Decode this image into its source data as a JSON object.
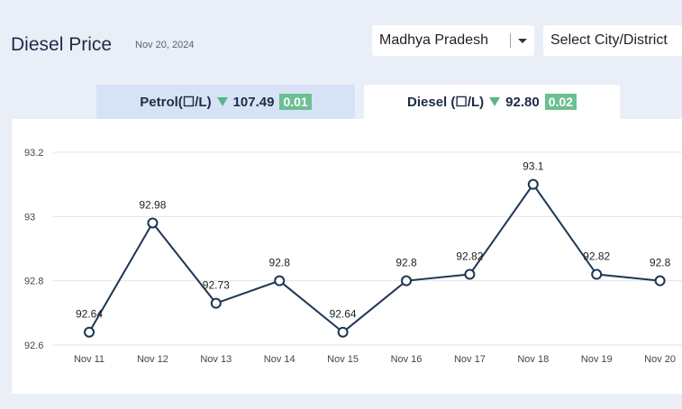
{
  "header": {
    "title": "Diesel Price",
    "date": "Nov 20, 2024",
    "state_select": "Madhya Pradesh",
    "city_select": "Select City/District"
  },
  "tabs": [
    {
      "label": "Petrol(☐/L)",
      "value": "107.49",
      "change": "0.01",
      "trend": "down"
    },
    {
      "label": "Diesel (☐/L)",
      "value": "92.80",
      "change": "0.02",
      "trend": "down"
    }
  ],
  "colors": {
    "line": "#1e3553",
    "trend_down": "#5bb58a",
    "badge": "#6cbf93"
  },
  "chart_data": {
    "type": "line",
    "categories": [
      "Nov 11",
      "Nov 12",
      "Nov 13",
      "Nov 14",
      "Nov 15",
      "Nov 16",
      "Nov 17",
      "Nov 18",
      "Nov 19",
      "Nov 20"
    ],
    "values": [
      92.64,
      92.98,
      92.73,
      92.8,
      92.64,
      92.8,
      92.82,
      93.1,
      92.82,
      92.8
    ],
    "labels": [
      "92.64",
      "92.98",
      "92.73",
      "92.8",
      "92.64",
      "92.8",
      "92.82",
      "93.1",
      "92.82",
      "92.8"
    ],
    "yticks": [
      "92.6",
      "92.8",
      "93",
      "93.2"
    ],
    "ylim": [
      92.6,
      93.2
    ],
    "grid": true,
    "legend": "none"
  }
}
